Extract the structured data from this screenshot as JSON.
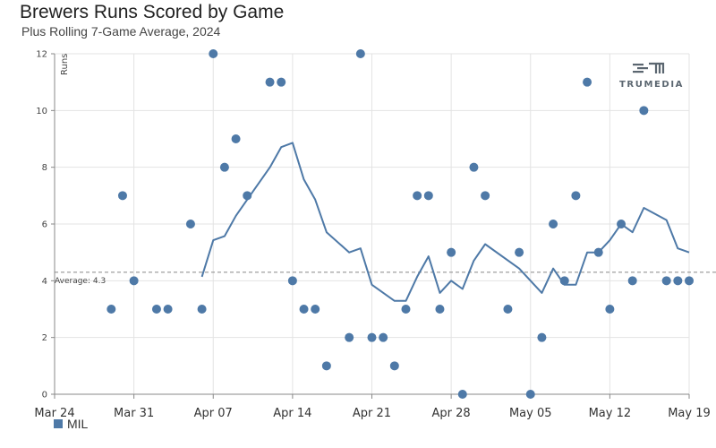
{
  "header": {
    "title": "Brewers Runs Scored by Game",
    "subtitle": "Plus Rolling 7-Game Average, 2024"
  },
  "logo": {
    "text": "TRUMEDIA",
    "icon": "trumedia-logo-icon"
  },
  "legend": {
    "label": "MIL",
    "color": "#4e79a7"
  },
  "colors": {
    "points": "#4e79a7",
    "line": "#4e79a7",
    "grid": "#e3e3e3",
    "average_line": "#888888"
  },
  "chart_data": {
    "type": "scatter",
    "title": "Brewers Runs Scored by Game",
    "subtitle": "Plus Rolling 7-Game Average, 2024",
    "ylabel": "Runs",
    "xlabel": "",
    "ylim": [
      0,
      12
    ],
    "xlim": [
      "2024-03-24",
      "2024-05-19"
    ],
    "x_ticks": [
      "Mar 24",
      "Mar 31",
      "Apr 07",
      "Apr 14",
      "Apr 21",
      "Apr 28",
      "May 05",
      "May 12",
      "May 19"
    ],
    "y_ticks": [
      "0",
      "2",
      "4",
      "6",
      "8",
      "10",
      "12"
    ],
    "grid": true,
    "legend_position": "bottom-left",
    "average": {
      "label": "Average: 4.3",
      "value": 4.3
    },
    "series": [
      {
        "name": "MIL",
        "kind": "points",
        "points": [
          {
            "x": "2024-03-29",
            "y": 3
          },
          {
            "x": "2024-03-30",
            "y": 7
          },
          {
            "x": "2024-03-31",
            "y": 4
          },
          {
            "x": "2024-04-02",
            "y": 3
          },
          {
            "x": "2024-04-03",
            "y": 3
          },
          {
            "x": "2024-04-05",
            "y": 6
          },
          {
            "x": "2024-04-06",
            "y": 3
          },
          {
            "x": "2024-04-07",
            "y": 12
          },
          {
            "x": "2024-04-08",
            "y": 8
          },
          {
            "x": "2024-04-09",
            "y": 9
          },
          {
            "x": "2024-04-10",
            "y": 7
          },
          {
            "x": "2024-04-12",
            "y": 11
          },
          {
            "x": "2024-04-13",
            "y": 11
          },
          {
            "x": "2024-04-14",
            "y": 4
          },
          {
            "x": "2024-04-15",
            "y": 3
          },
          {
            "x": "2024-04-16",
            "y": 3
          },
          {
            "x": "2024-04-17",
            "y": 1
          },
          {
            "x": "2024-04-19",
            "y": 2
          },
          {
            "x": "2024-04-20",
            "y": 12
          },
          {
            "x": "2024-04-21",
            "y": 2
          },
          {
            "x": "2024-04-22",
            "y": 2
          },
          {
            "x": "2024-04-23",
            "y": 1
          },
          {
            "x": "2024-04-24",
            "y": 3
          },
          {
            "x": "2024-04-25",
            "y": 7
          },
          {
            "x": "2024-04-26",
            "y": 7
          },
          {
            "x": "2024-04-27",
            "y": 3
          },
          {
            "x": "2024-04-28",
            "y": 5
          },
          {
            "x": "2024-04-29",
            "y": 0
          },
          {
            "x": "2024-04-30",
            "y": 8
          },
          {
            "x": "2024-05-01",
            "y": 7
          },
          {
            "x": "2024-05-03",
            "y": 3
          },
          {
            "x": "2024-05-04",
            "y": 5
          },
          {
            "x": "2024-05-05",
            "y": 0
          },
          {
            "x": "2024-05-06",
            "y": 2
          },
          {
            "x": "2024-05-07",
            "y": 6
          },
          {
            "x": "2024-05-08",
            "y": 4
          },
          {
            "x": "2024-05-09",
            "y": 7
          },
          {
            "x": "2024-05-10",
            "y": 11
          },
          {
            "x": "2024-05-11",
            "y": 5
          },
          {
            "x": "2024-05-12",
            "y": 3
          },
          {
            "x": "2024-05-13",
            "y": 6
          },
          {
            "x": "2024-05-14",
            "y": 4
          },
          {
            "x": "2024-05-15",
            "y": 10
          },
          {
            "x": "2024-05-17",
            "y": 4
          },
          {
            "x": "2024-05-18",
            "y": 4
          },
          {
            "x": "2024-05-19",
            "y": 4
          }
        ]
      },
      {
        "name": "MIL",
        "kind": "rolling_average_line",
        "points": [
          {
            "x": "2024-04-06",
            "y": 4.14
          },
          {
            "x": "2024-04-07",
            "y": 5.43
          },
          {
            "x": "2024-04-08",
            "y": 5.57
          },
          {
            "x": "2024-04-09",
            "y": 6.29
          },
          {
            "x": "2024-04-10",
            "y": 6.86
          },
          {
            "x": "2024-04-12",
            "y": 8.0
          },
          {
            "x": "2024-04-13",
            "y": 8.71
          },
          {
            "x": "2024-04-14",
            "y": 8.86
          },
          {
            "x": "2024-04-15",
            "y": 7.57
          },
          {
            "x": "2024-04-16",
            "y": 6.86
          },
          {
            "x": "2024-04-17",
            "y": 5.71
          },
          {
            "x": "2024-04-19",
            "y": 5.0
          },
          {
            "x": "2024-04-20",
            "y": 5.14
          },
          {
            "x": "2024-04-21",
            "y": 3.86
          },
          {
            "x": "2024-04-23",
            "y": 3.29
          },
          {
            "x": "2024-04-24",
            "y": 3.29
          },
          {
            "x": "2024-04-25",
            "y": 4.14
          },
          {
            "x": "2024-04-26",
            "y": 4.86
          },
          {
            "x": "2024-04-27",
            "y": 3.57
          },
          {
            "x": "2024-04-28",
            "y": 4.0
          },
          {
            "x": "2024-04-29",
            "y": 3.71
          },
          {
            "x": "2024-04-30",
            "y": 4.71
          },
          {
            "x": "2024-05-01",
            "y": 5.29
          },
          {
            "x": "2024-05-04",
            "y": 4.43
          },
          {
            "x": "2024-05-06",
            "y": 3.57
          },
          {
            "x": "2024-05-07",
            "y": 4.43
          },
          {
            "x": "2024-05-08",
            "y": 3.86
          },
          {
            "x": "2024-05-09",
            "y": 3.86
          },
          {
            "x": "2024-05-10",
            "y": 5.0
          },
          {
            "x": "2024-05-11",
            "y": 5.0
          },
          {
            "x": "2024-05-12",
            "y": 5.43
          },
          {
            "x": "2024-05-13",
            "y": 6.0
          },
          {
            "x": "2024-05-14",
            "y": 5.71
          },
          {
            "x": "2024-05-15",
            "y": 6.57
          },
          {
            "x": "2024-05-17",
            "y": 6.14
          },
          {
            "x": "2024-05-18",
            "y": 5.14
          },
          {
            "x": "2024-05-19",
            "y": 5.0
          }
        ]
      }
    ]
  }
}
